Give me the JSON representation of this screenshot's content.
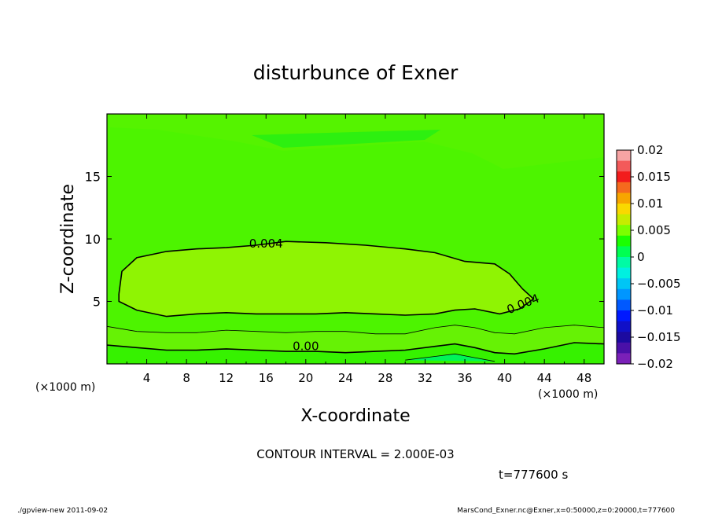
{
  "chart_data": {
    "type": "heatmap",
    "title": "disturbunce of Exner",
    "xlabel": "X-coordinate",
    "ylabel": "Z-coordinate",
    "x_unit": "(×1000 m)",
    "xlim": [
      0,
      50
    ],
    "ylim": [
      0,
      20
    ],
    "xticks": [
      4,
      8,
      12,
      16,
      20,
      24,
      28,
      32,
      36,
      40,
      44,
      48
    ],
    "yticks": [
      5,
      10,
      15
    ],
    "colorbar": {
      "ticks": [
        "0.02",
        "0.015",
        "0.01",
        "0.005",
        "0",
        "−0.005",
        "−0.01",
        "−0.015",
        "−0.02"
      ],
      "range": [
        -0.02,
        0.02
      ],
      "colors": [
        "#f7a3a3",
        "#f35a5a",
        "#f21c1c",
        "#f56a1e",
        "#f7a500",
        "#f9d800",
        "#c6ec00",
        "#7cff00",
        "#1bff00",
        "#00ff52",
        "#00fba4",
        "#00f0e0",
        "#00c6f5",
        "#0096ff",
        "#0059ff",
        "#0019ff",
        "#1010c8",
        "#1c0aa0",
        "#4a10a8",
        "#7a20b8"
      ]
    },
    "contour_labels": [
      {
        "text": "0.004",
        "x": 16,
        "z": 9.3
      },
      {
        "text": "0.004",
        "x": 42,
        "z": 4.5
      },
      {
        "text": "0.00",
        "x": 20,
        "z": 1.1
      }
    ],
    "contours": [
      {
        "level": 0.004,
        "points": [
          [
            1.2,
            5.6
          ],
          [
            1.5,
            7.4
          ],
          [
            3,
            8.5
          ],
          [
            6,
            9.0
          ],
          [
            9,
            9.2
          ],
          [
            12,
            9.3
          ],
          [
            15,
            9.5
          ],
          [
            18,
            9.8
          ],
          [
            22,
            9.7
          ],
          [
            26,
            9.5
          ],
          [
            30,
            9.2
          ],
          [
            33,
            8.9
          ],
          [
            36,
            8.2
          ],
          [
            39,
            8.0
          ],
          [
            40.5,
            7.2
          ],
          [
            41.8,
            6.0
          ],
          [
            42.9,
            5.2
          ],
          [
            41.5,
            4.4
          ],
          [
            39.5,
            4.0
          ],
          [
            37,
            4.4
          ],
          [
            35,
            4.3
          ],
          [
            33,
            4.0
          ],
          [
            30,
            3.9
          ],
          [
            27,
            4.0
          ],
          [
            24,
            4.1
          ],
          [
            21,
            4.0
          ],
          [
            18,
            4.0
          ],
          [
            15,
            4.0
          ],
          [
            12,
            4.1
          ],
          [
            9,
            4.0
          ],
          [
            6,
            3.8
          ],
          [
            3,
            4.3
          ],
          [
            1.2,
            5.0
          ],
          [
            1.2,
            5.6
          ]
        ]
      },
      {
        "level": 0.002,
        "points": [
          [
            0,
            3.0
          ],
          [
            3,
            2.6
          ],
          [
            6,
            2.5
          ],
          [
            9,
            2.5
          ],
          [
            12,
            2.7
          ],
          [
            15,
            2.6
          ],
          [
            18,
            2.5
          ],
          [
            21,
            2.6
          ],
          [
            24,
            2.6
          ],
          [
            27,
            2.4
          ],
          [
            30,
            2.4
          ],
          [
            33,
            2.9
          ],
          [
            35,
            3.1
          ],
          [
            37,
            2.9
          ],
          [
            39,
            2.5
          ],
          [
            41,
            2.4
          ],
          [
            44,
            2.9
          ],
          [
            47,
            3.1
          ],
          [
            50,
            2.9
          ]
        ]
      },
      {
        "level": 0.0,
        "points": [
          [
            0,
            1.5
          ],
          [
            3,
            1.3
          ],
          [
            6,
            1.1
          ],
          [
            9,
            1.1
          ],
          [
            12,
            1.2
          ],
          [
            15,
            1.1
          ],
          [
            18,
            1.0
          ],
          [
            21,
            1.0
          ],
          [
            24,
            0.9
          ],
          [
            27,
            1.0
          ],
          [
            30,
            1.1
          ],
          [
            33,
            1.4
          ],
          [
            35,
            1.6
          ],
          [
            37,
            1.3
          ],
          [
            39,
            0.9
          ],
          [
            41,
            0.8
          ],
          [
            44,
            1.2
          ],
          [
            47,
            1.7
          ],
          [
            50,
            1.6
          ]
        ]
      },
      {
        "level": -0.002,
        "points": [
          [
            30,
            0.3
          ],
          [
            33,
            0.6
          ],
          [
            35,
            0.8
          ],
          [
            37,
            0.5
          ],
          [
            39,
            0.2
          ]
        ]
      }
    ],
    "contour_interval_text": "CONTOUR INTERVAL = 2.000E-03",
    "time_text": "t=777600 s",
    "grid": false
  },
  "footer": {
    "left": "./gpview-new  2011-09-02",
    "right": "MarsCond_Exner.nc@Exner,x=0:50000,z=0:20000,t=777600"
  }
}
